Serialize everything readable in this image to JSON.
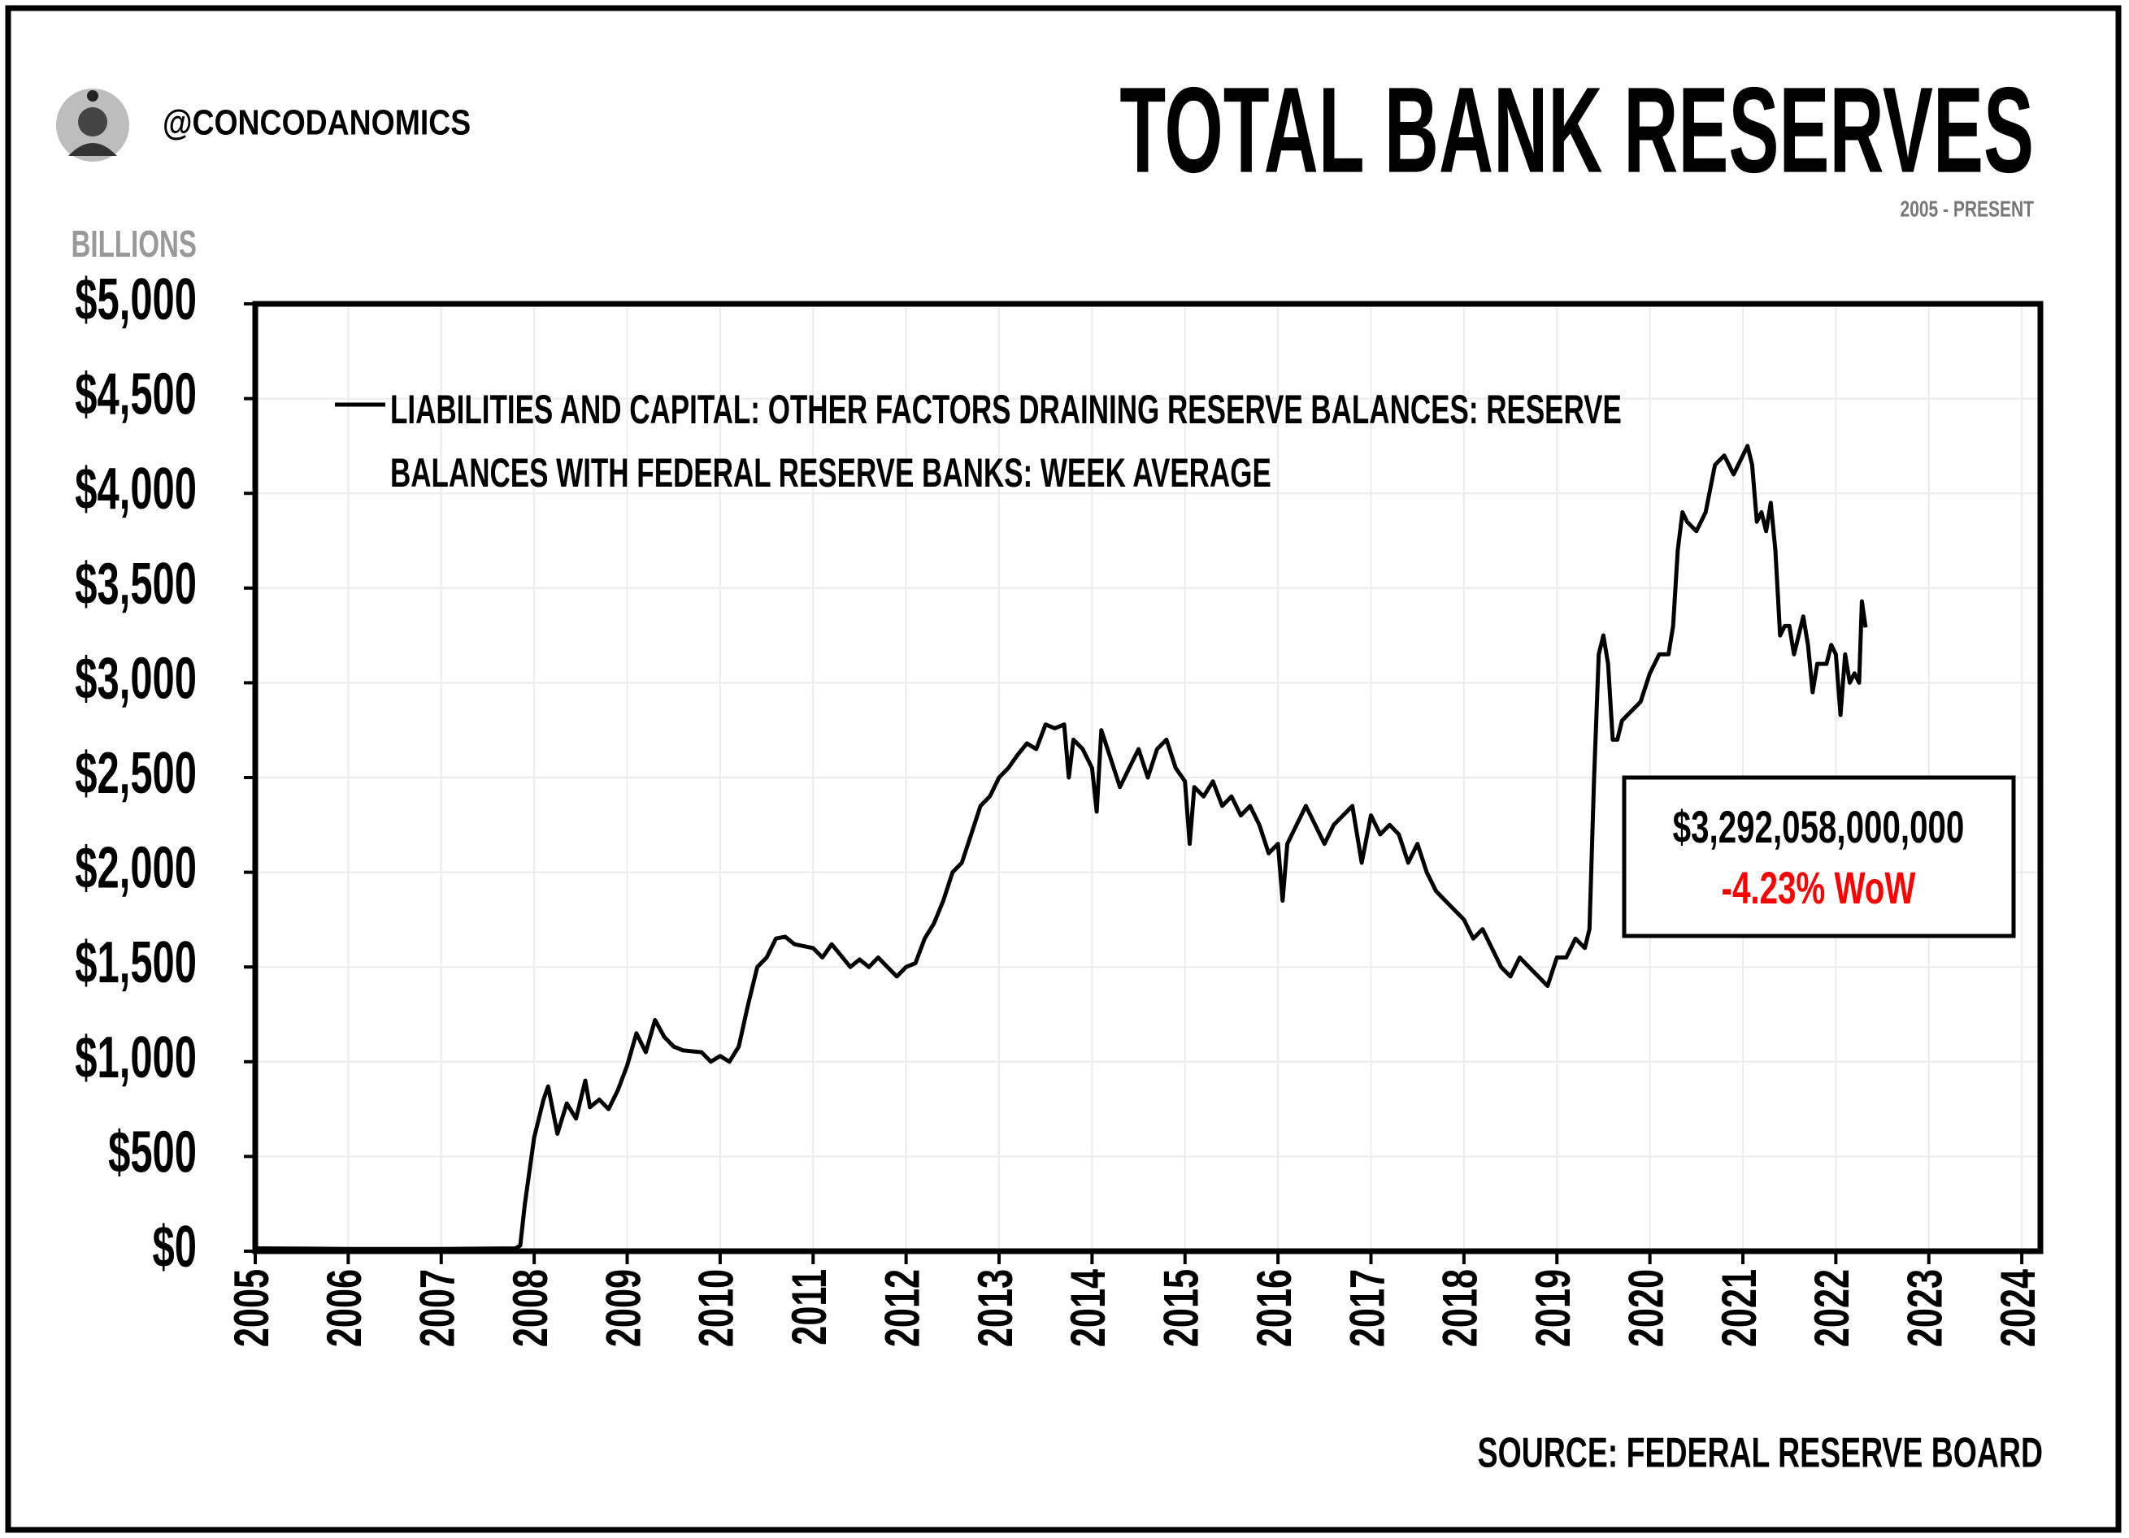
{
  "handle": "@CONCODANOMICS",
  "chart_data": {
    "type": "line",
    "title": "TOTAL BANK RESERVES",
    "subtitle": "2005 - PRESENT",
    "y_label": "BILLIONS",
    "source": "SOURCE: FEDERAL RESERVE BOARD",
    "annotations": [
      "$3,292,058,000,000",
      "-4.23% WoW"
    ],
    "annotation_colors": [
      "#000000",
      "#ff0000"
    ],
    "grid": true,
    "xlim": [
      2005,
      2024.2
    ],
    "ylim": [
      0,
      5000
    ],
    "xticks": [
      2005,
      2006,
      2007,
      2008,
      2009,
      2010,
      2011,
      2012,
      2013,
      2014,
      2015,
      2016,
      2017,
      2018,
      2019,
      2020,
      2021,
      2022,
      2023,
      2024
    ],
    "yticks": [
      {
        "value": 0,
        "label": "$0"
      },
      {
        "value": 500,
        "label": "$500"
      },
      {
        "value": 1000,
        "label": "$1,000"
      },
      {
        "value": 1500,
        "label": "$1,500"
      },
      {
        "value": 2000,
        "label": "$2,000"
      },
      {
        "value": 2500,
        "label": "$2,500"
      },
      {
        "value": 3000,
        "label": "$3,000"
      },
      {
        "value": 3500,
        "label": "$3,500"
      },
      {
        "value": 4000,
        "label": "$4,000"
      },
      {
        "value": 4500,
        "label": "$4,500"
      },
      {
        "value": 5000,
        "label": "$5,000"
      }
    ],
    "x": [
      2005.0,
      2006.0,
      2007.0,
      2007.8,
      2007.85,
      2007.9,
      2008.0,
      2008.1,
      2008.15,
      2008.25,
      2008.35,
      2008.45,
      2008.55,
      2008.6,
      2008.7,
      2008.8,
      2008.9,
      2009.0,
      2009.1,
      2009.2,
      2009.3,
      2009.4,
      2009.5,
      2009.6,
      2009.8,
      2009.9,
      2010.0,
      2010.1,
      2010.2,
      2010.3,
      2010.4,
      2010.5,
      2010.6,
      2010.7,
      2010.8,
      2011.0,
      2011.1,
      2011.2,
      2011.3,
      2011.4,
      2011.5,
      2011.6,
      2011.7,
      2011.8,
      2011.9,
      2012.0,
      2012.1,
      2012.2,
      2012.3,
      2012.4,
      2012.5,
      2012.6,
      2012.7,
      2012.8,
      2012.9,
      2013.0,
      2013.1,
      2013.2,
      2013.3,
      2013.4,
      2013.5,
      2013.6,
      2013.7,
      2013.75,
      2013.8,
      2013.9,
      2014.0,
      2014.05,
      2014.1,
      2014.2,
      2014.3,
      2014.4,
      2014.5,
      2014.6,
      2014.7,
      2014.8,
      2014.9,
      2015.0,
      2015.05,
      2015.1,
      2015.2,
      2015.3,
      2015.4,
      2015.5,
      2015.6,
      2015.7,
      2015.8,
      2015.9,
      2016.0,
      2016.05,
      2016.1,
      2016.2,
      2016.3,
      2016.4,
      2016.5,
      2016.6,
      2016.7,
      2016.8,
      2016.9,
      2017.0,
      2017.1,
      2017.2,
      2017.3,
      2017.4,
      2017.5,
      2017.6,
      2017.7,
      2017.8,
      2017.9,
      2018.0,
      2018.1,
      2018.2,
      2018.3,
      2018.4,
      2018.5,
      2018.6,
      2018.7,
      2018.8,
      2018.9,
      2019.0,
      2019.1,
      2019.2,
      2019.3,
      2019.35,
      2019.4,
      2019.45,
      2019.5,
      2019.55,
      2019.6,
      2019.65,
      2019.7,
      2019.8,
      2019.9,
      2020.0,
      2020.1,
      2020.2,
      2020.25,
      2020.3,
      2020.35,
      2020.4,
      2020.5,
      2020.6,
      2020.7,
      2020.8,
      2020.9,
      2021.0,
      2021.05,
      2021.1,
      2021.15,
      2021.2,
      2021.25,
      2021.3,
      2021.35,
      2021.4,
      2021.45,
      2021.5,
      2021.55,
      2021.6,
      2021.65,
      2021.7,
      2021.75,
      2021.8,
      2021.9,
      2021.95,
      2022.0,
      2022.05,
      2022.1,
      2022.15,
      2022.2,
      2022.25,
      2022.28,
      2022.32
    ],
    "series": [
      {
        "name": "LIABILITIES AND CAPITAL: OTHER FACTORS DRAINING RESERVE BALANCES: RESERVE BALANCES WITH FEDERAL RESERVE BANKS: WEEK AVERAGE",
        "color": "#000000",
        "values": [
          15,
          12,
          12,
          15,
          30,
          250,
          600,
          800,
          870,
          620,
          780,
          700,
          900,
          760,
          800,
          750,
          850,
          980,
          1150,
          1050,
          1220,
          1130,
          1080,
          1060,
          1050,
          1000,
          1030,
          1000,
          1080,
          1300,
          1500,
          1550,
          1650,
          1660,
          1620,
          1600,
          1550,
          1620,
          1560,
          1500,
          1540,
          1500,
          1550,
          1500,
          1450,
          1500,
          1520,
          1650,
          1730,
          1850,
          2000,
          2050,
          2200,
          2350,
          2400,
          2500,
          2550,
          2620,
          2680,
          2650,
          2780,
          2760,
          2780,
          2500,
          2700,
          2650,
          2550,
          2320,
          2750,
          2600,
          2450,
          2550,
          2650,
          2500,
          2650,
          2700,
          2550,
          2480,
          2150,
          2450,
          2400,
          2480,
          2350,
          2400,
          2300,
          2350,
          2250,
          2100,
          2150,
          1850,
          2150,
          2250,
          2350,
          2250,
          2150,
          2250,
          2300,
          2350,
          2050,
          2300,
          2200,
          2250,
          2200,
          2050,
          2150,
          2000,
          1900,
          1850,
          1800,
          1750,
          1650,
          1700,
          1600,
          1500,
          1450,
          1550,
          1500,
          1450,
          1400,
          1550,
          1550,
          1650,
          1600,
          1700,
          2500,
          3150,
          3250,
          3100,
          2700,
          2700,
          2800,
          2850,
          2900,
          3050,
          3150,
          3150,
          3300,
          3700,
          3900,
          3850,
          3800,
          3900,
          4150,
          4200,
          4100,
          4200,
          4250,
          4150,
          3850,
          3900,
          3800,
          3950,
          3700,
          3250,
          3300,
          3300,
          3150,
          3250,
          3350,
          3200,
          2950,
          3100,
          3100,
          3200,
          3150,
          2830,
          3150,
          3000,
          3050,
          3000,
          3430,
          3292.058
        ]
      }
    ]
  }
}
